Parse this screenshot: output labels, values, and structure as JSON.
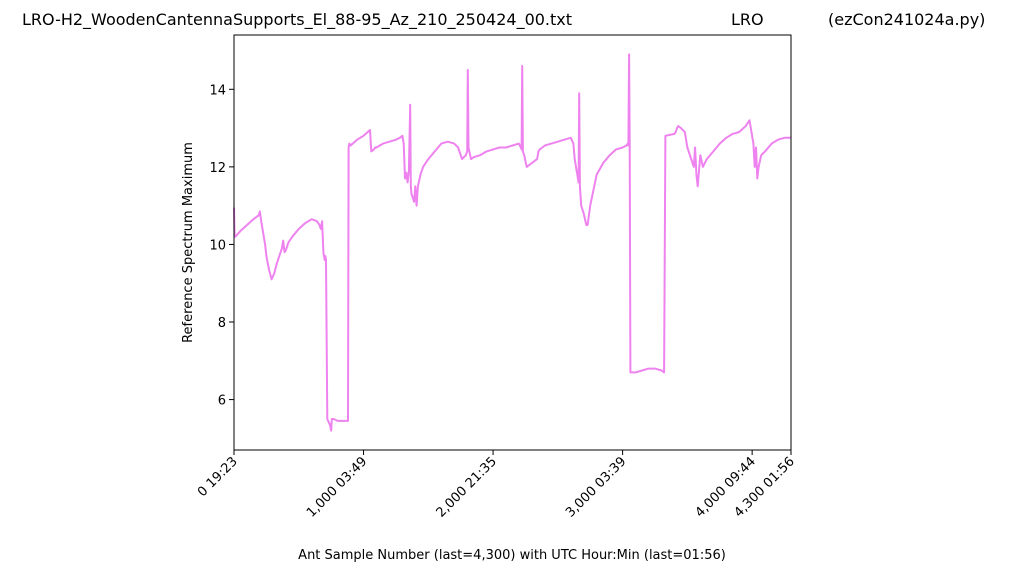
{
  "chart_data": {
    "type": "line",
    "title_left": "LRO-H2_WoodenCantennaSupports_El_88-95_Az_210_250424_00.txt",
    "title_center": "LRO",
    "title_right": "(ezCon241024a.py)",
    "xlabel": "Ant Sample Number (last=4,300) with UTC Hour:Min (last=01:56)",
    "ylabel": "Reference Spectrum Maximum",
    "xlim": [
      0,
      4300
    ],
    "ylim": [
      4.7,
      15.4
    ],
    "x_ticks": [
      {
        "value": 0,
        "label": "0  19:23"
      },
      {
        "value": 1000,
        "label": "1,000  03:49"
      },
      {
        "value": 2000,
        "label": "2,000  21:35"
      },
      {
        "value": 3000,
        "label": "3,000  03:39"
      },
      {
        "value": 4000,
        "label": "4,000  09:44"
      },
      {
        "value": 4300,
        "label": "4,300  01:56"
      }
    ],
    "y_ticks": [
      {
        "value": 6,
        "label": "6"
      },
      {
        "value": 8,
        "label": "8"
      },
      {
        "value": 10,
        "label": "10"
      },
      {
        "value": 12,
        "label": "12"
      },
      {
        "value": 14,
        "label": "14"
      }
    ],
    "grid": false,
    "line_color": "#ee82ee",
    "series": [
      {
        "x": [
          0,
          5,
          10,
          50,
          100,
          150,
          190,
          200,
          210,
          220,
          230,
          240,
          250,
          270,
          290,
          310,
          330,
          350,
          370,
          380,
          390,
          400,
          410,
          420,
          450,
          500,
          550,
          600,
          640,
          660,
          670,
          680,
          690,
          700,
          705,
          710,
          720,
          740,
          750,
          755,
          760,
          770,
          800,
          850,
          880,
          885,
          890,
          900,
          950,
          1000,
          1050,
          1060,
          1080,
          1090,
          1100,
          1150,
          1200,
          1250,
          1280,
          1300,
          1310,
          1320,
          1330,
          1340,
          1350,
          1360,
          1365,
          1370,
          1380,
          1390,
          1400,
          1410,
          1420,
          1440,
          1460,
          1500,
          1550,
          1600,
          1650,
          1700,
          1730,
          1760,
          1790,
          1800,
          1805,
          1810,
          1830,
          1850,
          1900,
          1950,
          2000,
          2050,
          2100,
          2150,
          2200,
          2220,
          2225,
          2230,
          2240,
          2260,
          2300,
          2340,
          2345,
          2350,
          2360,
          2380,
          2400,
          2450,
          2500,
          2550,
          2600,
          2620,
          2630,
          2640,
          2650,
          2660,
          2665,
          2670,
          2680,
          2700,
          2720,
          2730,
          2750,
          2800,
          2850,
          2900,
          2950,
          3000,
          3030,
          3040,
          3045,
          3050,
          3055,
          3060,
          3070,
          3100,
          3150,
          3200,
          3250,
          3300,
          3320,
          3330,
          3400,
          3410,
          3415,
          3420,
          3430,
          3450,
          3480,
          3500,
          3550,
          3560,
          3570,
          3580,
          3600,
          3620,
          3650,
          3700,
          3750,
          3800,
          3850,
          3900,
          3950,
          3980,
          4000,
          4010,
          4020,
          4030,
          4040,
          4050,
          4070,
          4100,
          4150,
          4200,
          4250,
          4300
        ],
        "values": [
          10.95,
          10.2,
          10.2,
          10.35,
          10.5,
          10.65,
          10.75,
          10.85,
          10.6,
          10.4,
          10.2,
          10.0,
          9.7,
          9.35,
          9.1,
          9.25,
          9.5,
          9.7,
          9.9,
          10.1,
          9.8,
          9.85,
          9.95,
          10.05,
          10.2,
          10.4,
          10.55,
          10.65,
          10.6,
          10.5,
          10.4,
          10.6,
          9.8,
          9.6,
          9.7,
          9.6,
          5.5,
          5.35,
          5.2,
          5.5,
          5.5,
          5.5,
          5.45,
          5.45,
          5.45,
          12.5,
          12.6,
          12.55,
          12.7,
          12.8,
          12.95,
          12.4,
          12.45,
          12.5,
          12.5,
          12.6,
          12.65,
          12.7,
          12.75,
          12.8,
          12.6,
          11.7,
          11.85,
          11.6,
          11.9,
          13.6,
          11.5,
          11.3,
          11.2,
          11.1,
          11.5,
          11.0,
          11.5,
          11.8,
          12.0,
          12.2,
          12.4,
          12.6,
          12.65,
          12.6,
          12.5,
          12.2,
          12.3,
          12.4,
          14.5,
          12.5,
          12.2,
          12.25,
          12.3,
          12.4,
          12.45,
          12.5,
          12.5,
          12.55,
          12.6,
          12.45,
          14.6,
          12.4,
          12.3,
          12.0,
          12.1,
          12.2,
          12.3,
          12.4,
          12.45,
          12.5,
          12.55,
          12.6,
          12.65,
          12.7,
          12.75,
          12.6,
          12.2,
          12.0,
          11.8,
          11.6,
          13.9,
          11.5,
          11.0,
          10.8,
          10.5,
          10.5,
          11.0,
          11.8,
          12.1,
          12.3,
          12.45,
          12.5,
          12.55,
          12.6,
          12.55,
          14.9,
          12.6,
          6.7,
          6.7,
          6.7,
          6.75,
          6.8,
          6.8,
          6.75,
          6.7,
          12.8,
          12.85,
          12.9,
          12.95,
          13.0,
          13.05,
          13.0,
          12.9,
          12.5,
          12.0,
          12.5,
          11.8,
          11.5,
          12.3,
          12.0,
          12.2,
          12.4,
          12.6,
          12.75,
          12.85,
          12.9,
          13.05,
          13.2,
          12.8,
          12.6,
          12.0,
          12.5,
          11.7,
          12.0,
          12.3,
          12.4,
          12.6,
          12.7,
          12.75,
          12.75
        ]
      }
    ]
  }
}
